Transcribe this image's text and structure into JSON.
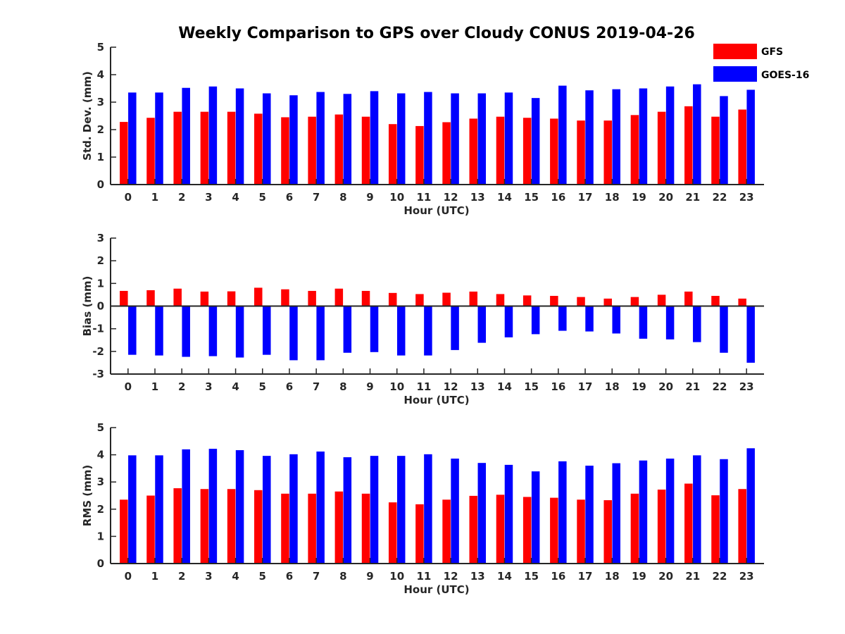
{
  "chart_data": {
    "type": "bar",
    "title": "Weekly Comparison to GPS over Cloudy CONUS 2019-04-26",
    "categories": [
      "0",
      "1",
      "2",
      "3",
      "4",
      "5",
      "6",
      "7",
      "8",
      "9",
      "10",
      "11",
      "12",
      "13",
      "14",
      "15",
      "16",
      "17",
      "18",
      "19",
      "20",
      "21",
      "22",
      "23"
    ],
    "legend": {
      "placement": "top-right",
      "entries": [
        {
          "name": "GFS",
          "color": "#ff0000"
        },
        {
          "name": "GOES-16",
          "color": "#0000ff"
        }
      ]
    },
    "panels": [
      {
        "name": "std-dev",
        "xlabel": "Hour (UTC)",
        "ylabel": "Std. Dev. (mm)",
        "ylim": [
          0,
          5
        ],
        "yticks": [
          0,
          1,
          2,
          3,
          4,
          5
        ],
        "series": [
          {
            "name": "GFS",
            "color": "#ff0000",
            "values": [
              2.28,
              2.43,
              2.65,
              2.65,
              2.65,
              2.58,
              2.45,
              2.47,
              2.55,
              2.47,
              2.2,
              2.13,
              2.27,
              2.4,
              2.47,
              2.43,
              2.4,
              2.33,
              2.33,
              2.53,
              2.65,
              2.85,
              2.47,
              2.73
            ]
          },
          {
            "name": "GOES-16",
            "color": "#0000ff",
            "values": [
              3.35,
              3.35,
              3.52,
              3.57,
              3.5,
              3.32,
              3.25,
              3.37,
              3.3,
              3.4,
              3.32,
              3.37,
              3.32,
              3.32,
              3.35,
              3.15,
              3.6,
              3.43,
              3.47,
              3.5,
              3.57,
              3.65,
              3.22,
              3.45
            ]
          }
        ]
      },
      {
        "name": "bias",
        "xlabel": "Hour (UTC)",
        "ylabel": "Bias (mm)",
        "ylim": [
          -3,
          3
        ],
        "yticks": [
          -3,
          -2,
          -1,
          0,
          1,
          2,
          3
        ],
        "series": [
          {
            "name": "GFS",
            "color": "#ff0000",
            "values": [
              0.67,
              0.7,
              0.77,
              0.64,
              0.65,
              0.81,
              0.74,
              0.67,
              0.77,
              0.67,
              0.58,
              0.53,
              0.59,
              0.64,
              0.53,
              0.47,
              0.45,
              0.4,
              0.33,
              0.4,
              0.5,
              0.64,
              0.45,
              0.33
            ]
          },
          {
            "name": "GOES-16",
            "color": "#0000ff",
            "values": [
              -2.15,
              -2.18,
              -2.24,
              -2.21,
              -2.27,
              -2.15,
              -2.39,
              -2.39,
              -2.06,
              -2.03,
              -2.18,
              -2.18,
              -1.94,
              -1.62,
              -1.38,
              -1.24,
              -1.09,
              -1.12,
              -1.21,
              -1.44,
              -1.47,
              -1.59,
              -2.06,
              -2.5
            ]
          }
        ]
      },
      {
        "name": "rms",
        "xlabel": "Hour (UTC)",
        "ylabel": "RMS (mm)",
        "ylim": [
          0,
          5
        ],
        "yticks": [
          0,
          1,
          2,
          3,
          4,
          5
        ],
        "series": [
          {
            "name": "GFS",
            "color": "#ff0000",
            "values": [
              2.35,
              2.5,
              2.77,
              2.74,
              2.74,
              2.7,
              2.57,
              2.57,
              2.65,
              2.57,
              2.25,
              2.18,
              2.35,
              2.49,
              2.53,
              2.45,
              2.42,
              2.35,
              2.33,
              2.57,
              2.72,
              2.94,
              2.51,
              2.74
            ]
          },
          {
            "name": "GOES-16",
            "color": "#0000ff",
            "values": [
              3.98,
              3.98,
              4.2,
              4.22,
              4.17,
              3.96,
              4.02,
              4.12,
              3.91,
              3.96,
              3.96,
              4.02,
              3.86,
              3.7,
              3.63,
              3.39,
              3.76,
              3.6,
              3.69,
              3.79,
              3.86,
              3.98,
              3.84,
              4.24
            ]
          }
        ]
      }
    ]
  }
}
